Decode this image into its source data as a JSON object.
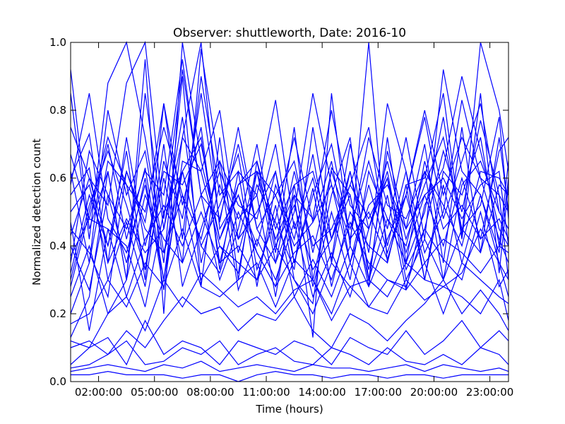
{
  "chart_data": {
    "type": "line",
    "title": "Observer: shuttleworth, Date: 2016-10",
    "xlabel": "Time (hours)",
    "ylabel": "Normalized detection count",
    "xlim": [
      0.5,
      24.0
    ],
    "ylim": [
      0.0,
      1.0
    ],
    "x_ticks": [
      {
        "value": 2,
        "label": "02:00:00"
      },
      {
        "value": 5,
        "label": "05:00:00"
      },
      {
        "value": 8,
        "label": "08:00:00"
      },
      {
        "value": 11,
        "label": "11:00:00"
      },
      {
        "value": 14,
        "label": "14:00:00"
      },
      {
        "value": 17,
        "label": "17:00:00"
      },
      {
        "value": 20,
        "label": "20:00:00"
      },
      {
        "value": 23,
        "label": "23:00:00"
      }
    ],
    "y_ticks": [
      {
        "value": 0.0,
        "label": "0.0"
      },
      {
        "value": 0.2,
        "label": "0.2"
      },
      {
        "value": 0.4,
        "label": "0.4"
      },
      {
        "value": 0.6,
        "label": "0.6"
      },
      {
        "value": 0.8,
        "label": "0.8"
      },
      {
        "value": 1.0,
        "label": "1.0"
      }
    ],
    "grid": false,
    "legend": "none",
    "line_color": "#0000ff",
    "x": [
      0.5,
      1.5,
      2.5,
      3.5,
      4.5,
      5.5,
      6.5,
      7.5,
      8.5,
      9.5,
      10.5,
      11.5,
      12.5,
      13.5,
      14.5,
      15.5,
      16.5,
      17.5,
      18.5,
      19.5,
      20.5,
      21.5,
      22.5,
      23.5,
      24.0
    ],
    "series": [
      {
        "values": [
          0.13,
          0.25,
          0.62,
          0.3,
          0.95,
          0.2,
          1.0,
          0.65,
          0.42,
          0.55,
          0.38,
          0.28,
          0.55,
          0.13,
          0.85,
          0.4,
          1.0,
          0.35,
          0.58,
          0.6,
          0.85,
          0.43,
          1.0,
          0.8,
          0.62
        ]
      },
      {
        "values": [
          0.43,
          0.6,
          0.52,
          0.88,
          1.0,
          0.48,
          0.92,
          0.55,
          0.65,
          0.38,
          0.58,
          0.47,
          0.33,
          0.75,
          0.42,
          0.62,
          0.33,
          0.55,
          0.27,
          0.52,
          0.63,
          0.9,
          0.68,
          0.45,
          0.4
        ]
      },
      {
        "values": [
          0.67,
          0.48,
          0.7,
          0.42,
          0.63,
          0.3,
          0.72,
          1.0,
          0.45,
          0.55,
          0.4,
          0.62,
          0.3,
          0.23,
          0.63,
          0.55,
          0.28,
          0.72,
          0.35,
          0.5,
          0.78,
          0.42,
          0.85,
          0.32,
          0.58
        ]
      },
      {
        "values": [
          0.2,
          0.35,
          0.65,
          0.58,
          0.33,
          0.6,
          0.35,
          0.98,
          0.62,
          0.48,
          0.55,
          0.25,
          0.58,
          0.28,
          0.5,
          0.3,
          0.62,
          0.48,
          0.4,
          0.62,
          0.3,
          0.58,
          0.65,
          0.5,
          0.45
        ]
      },
      {
        "values": [
          0.85,
          0.42,
          0.88,
          1.0,
          0.72,
          0.38,
          0.62,
          0.4,
          0.52,
          0.67,
          0.33,
          0.48,
          0.72,
          0.47,
          0.58,
          0.42,
          0.5,
          0.36,
          0.55,
          0.8,
          0.55,
          0.72,
          0.6,
          0.42,
          0.35
        ]
      },
      {
        "values": [
          0.32,
          0.55,
          0.4,
          0.62,
          0.47,
          0.82,
          0.52,
          0.75,
          0.33,
          0.62,
          0.55,
          0.83,
          0.45,
          0.6,
          0.36,
          0.7,
          0.45,
          0.62,
          0.33,
          0.45,
          0.68,
          0.5,
          0.77,
          0.55,
          0.5
        ]
      },
      {
        "values": [
          0.55,
          0.63,
          0.3,
          0.47,
          0.28,
          0.65,
          0.48,
          0.85,
          0.47,
          0.75,
          0.45,
          0.35,
          0.62,
          0.4,
          0.45,
          0.58,
          0.75,
          0.4,
          0.62,
          0.38,
          0.5,
          0.83,
          0.6,
          0.55,
          0.3
        ]
      },
      {
        "values": [
          0.4,
          0.27,
          0.55,
          0.35,
          0.6,
          0.27,
          0.65,
          0.62,
          0.4,
          0.32,
          0.62,
          0.55,
          0.4,
          0.47,
          0.65,
          0.35,
          0.52,
          0.58,
          0.45,
          0.55,
          0.4,
          0.6,
          0.42,
          0.68,
          0.72
        ]
      },
      {
        "values": [
          0.6,
          0.73,
          0.35,
          0.48,
          0.38,
          0.45,
          0.78,
          0.35,
          0.58,
          0.42,
          0.5,
          0.62,
          0.35,
          0.57,
          0.28,
          0.5,
          0.4,
          0.35,
          0.58,
          0.3,
          0.58,
          0.35,
          0.55,
          0.38,
          0.6
        ]
      },
      {
        "values": [
          0.37,
          0.48,
          0.45,
          0.25,
          0.42,
          0.52,
          0.4,
          0.55,
          0.3,
          0.45,
          0.7,
          0.4,
          0.52,
          0.33,
          0.42,
          0.55,
          0.3,
          0.48,
          0.35,
          0.65,
          0.45,
          0.52,
          0.42,
          0.48,
          0.42
        ]
      },
      {
        "values": [
          0.3,
          0.52,
          0.68,
          0.52,
          0.33,
          0.7,
          0.28,
          0.45,
          0.62,
          0.27,
          0.42,
          0.3,
          0.47,
          0.25,
          0.38,
          0.25,
          0.45,
          0.6,
          0.3,
          0.42,
          0.3,
          0.45,
          0.38,
          0.58,
          0.55
        ]
      },
      {
        "values": [
          0.45,
          0.38,
          0.25,
          0.62,
          0.45,
          0.38,
          0.55,
          0.3,
          0.4,
          0.35,
          0.3,
          0.52,
          0.25,
          0.36,
          0.25,
          0.4,
          0.28,
          0.42,
          0.55,
          0.35,
          0.42,
          0.38,
          0.32,
          0.4,
          0.38
        ]
      },
      {
        "values": [
          0.47,
          0.15,
          0.45,
          0.4,
          0.22,
          0.5,
          0.62,
          0.4,
          0.32,
          0.5,
          0.38,
          0.28,
          0.38,
          0.43,
          0.3,
          0.47,
          0.35,
          0.3,
          0.28,
          0.45,
          0.36,
          0.3,
          0.5,
          0.28,
          0.33
        ]
      },
      {
        "values": [
          0.25,
          0.4,
          0.2,
          0.3,
          0.55,
          0.42,
          0.35,
          0.5,
          0.35,
          0.4,
          0.3,
          0.4,
          0.3,
          0.2,
          0.35,
          0.28,
          0.3,
          0.25,
          0.35,
          0.3,
          0.28,
          0.32,
          0.45,
          0.35,
          0.25
        ]
      },
      {
        "values": [
          0.17,
          0.2,
          0.3,
          0.22,
          0.35,
          0.28,
          0.45,
          0.28,
          0.25,
          0.3,
          0.35,
          0.22,
          0.36,
          0.3,
          0.2,
          0.35,
          0.22,
          0.3,
          0.27,
          0.35,
          0.2,
          0.35,
          0.3,
          0.25,
          0.23
        ]
      },
      {
        "values": [
          0.12,
          0.1,
          0.2,
          0.25,
          0.15,
          0.3,
          0.22,
          0.32,
          0.27,
          0.22,
          0.25,
          0.2,
          0.27,
          0.3,
          0.18,
          0.28,
          0.22,
          0.2,
          0.3,
          0.24,
          0.28,
          0.25,
          0.2,
          0.3,
          0.18
        ]
      },
      {
        "values": [
          0.1,
          0.12,
          0.08,
          0.15,
          0.1,
          0.18,
          0.25,
          0.2,
          0.22,
          0.15,
          0.2,
          0.18,
          0.25,
          0.15,
          0.1,
          0.2,
          0.17,
          0.12,
          0.18,
          0.23,
          0.3,
          0.2,
          0.27,
          0.2,
          0.15
        ]
      },
      {
        "values": [
          0.05,
          0.1,
          0.13,
          0.05,
          0.18,
          0.08,
          0.12,
          0.1,
          0.05,
          0.12,
          0.1,
          0.08,
          0.12,
          0.1,
          0.05,
          0.13,
          0.1,
          0.08,
          0.15,
          0.08,
          0.12,
          0.18,
          0.1,
          0.15,
          0.12
        ]
      },
      {
        "values": [
          0.04,
          0.05,
          0.08,
          0.12,
          0.05,
          0.06,
          0.1,
          0.08,
          0.12,
          0.05,
          0.08,
          0.1,
          0.06,
          0.05,
          0.1,
          0.08,
          0.05,
          0.1,
          0.06,
          0.05,
          0.08,
          0.05,
          0.1,
          0.08,
          0.05
        ]
      },
      {
        "values": [
          0.03,
          0.04,
          0.05,
          0.04,
          0.03,
          0.05,
          0.04,
          0.06,
          0.03,
          0.04,
          0.05,
          0.04,
          0.03,
          0.05,
          0.04,
          0.04,
          0.03,
          0.04,
          0.05,
          0.03,
          0.05,
          0.04,
          0.03,
          0.04,
          0.03
        ]
      },
      {
        "values": [
          0.02,
          0.02,
          0.03,
          0.02,
          0.02,
          0.02,
          0.01,
          0.02,
          0.02,
          0.0,
          0.02,
          0.03,
          0.02,
          0.02,
          0.01,
          0.02,
          0.02,
          0.01,
          0.02,
          0.02,
          0.01,
          0.02,
          0.02,
          0.02,
          0.02
        ]
      },
      {
        "values": [
          0.5,
          0.58,
          0.35,
          0.72,
          0.4,
          0.62,
          0.58,
          0.7,
          0.42,
          0.58,
          0.65,
          0.45,
          0.58,
          0.62,
          0.42,
          0.58,
          0.48,
          0.6,
          0.38,
          0.55,
          0.6,
          0.48,
          0.58,
          0.62,
          0.4
        ]
      },
      {
        "values": [
          0.62,
          0.35,
          0.8,
          0.55,
          0.68,
          0.35,
          0.9,
          0.28,
          0.72,
          0.3,
          0.65,
          0.38,
          0.75,
          0.3,
          0.55,
          0.72,
          0.3,
          0.68,
          0.45,
          0.7,
          0.35,
          0.75,
          0.38,
          0.72,
          0.5
        ]
      },
      {
        "values": [
          0.75,
          0.6,
          0.4,
          0.68,
          0.3,
          0.82,
          0.42,
          0.9,
          0.55,
          0.62,
          0.28,
          0.58,
          0.42,
          0.67,
          0.35,
          0.62,
          0.38,
          0.82,
          0.62,
          0.3,
          0.62,
          0.55,
          0.72,
          0.4,
          0.65
        ]
      },
      {
        "values": [
          0.35,
          0.68,
          0.55,
          0.45,
          0.62,
          0.55,
          0.95,
          0.55,
          0.48,
          0.7,
          0.45,
          0.55,
          0.65,
          0.38,
          0.62,
          0.45,
          0.65,
          0.45,
          0.72,
          0.42,
          0.92,
          0.62,
          0.55,
          0.35,
          0.3
        ]
      },
      {
        "values": [
          0.92,
          0.45,
          0.62,
          0.3,
          0.85,
          0.45,
          0.72,
          0.62,
          0.8,
          0.42,
          0.62,
          0.35,
          0.5,
          0.85,
          0.58,
          0.35,
          0.58,
          0.38,
          0.55,
          0.78,
          0.48,
          0.65,
          0.82,
          0.5,
          0.45
        ]
      },
      {
        "values": [
          0.28,
          0.5,
          0.72,
          0.58,
          0.5,
          0.75,
          0.55,
          0.42,
          0.65,
          0.52,
          0.48,
          0.7,
          0.35,
          0.55,
          0.7,
          0.42,
          0.72,
          0.52,
          0.48,
          0.62,
          0.52,
          0.4,
          0.62,
          0.6,
          0.55
        ]
      },
      {
        "values": [
          0.58,
          0.85,
          0.48,
          0.38,
          0.58,
          0.3,
          0.62,
          0.72,
          0.35,
          0.58,
          0.62,
          0.42,
          0.55,
          0.48,
          0.8,
          0.52,
          0.45,
          0.65,
          0.42,
          0.58,
          0.72,
          0.45,
          0.52,
          0.78,
          0.48
        ]
      }
    ]
  }
}
